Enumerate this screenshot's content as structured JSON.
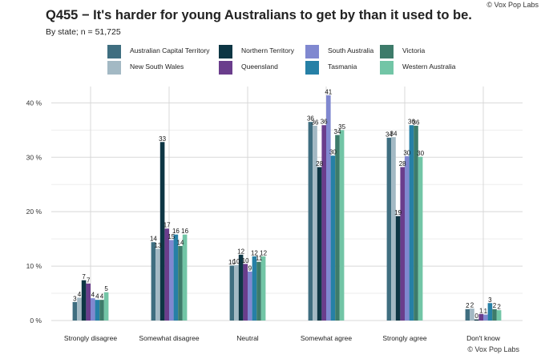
{
  "credit": "© Vox Pop Labs",
  "colors": {
    "Australian Capital Territory": "#3f6e80",
    "New South Wales": "#a3b9c4",
    "Northern Territory": "#0d3644",
    "Queensland": "#6a3d8c",
    "South Australia": "#8088d0",
    "Tasmania": "#2680a6",
    "Victoria": "#3d7b6a",
    "Western Australia": "#72c5a6"
  },
  "chart_data": {
    "type": "bar",
    "title": "Q455 − It's harder for young Australians to get by than it used to be.",
    "subtitle": "By state; n = 51,725",
    "categories": [
      "Strongly disagree",
      "Somewhat disagree",
      "Neutral",
      "Somewhat agree",
      "Strongly agree",
      "Don't know"
    ],
    "ylim": [
      0,
      43
    ],
    "yticks": [
      0,
      10,
      20,
      30,
      40
    ],
    "ytick_labels": [
      "0 %",
      "10 %",
      "20 %",
      "30 %",
      "40 %"
    ],
    "grid": true,
    "legend_position": "top",
    "legend_order": [
      "Australian Capital Territory",
      "New South Wales",
      "Northern Territory",
      "Queensland",
      "South Australia",
      "Tasmania",
      "Victoria",
      "Western Australia"
    ],
    "series": [
      {
        "name": "Australian Capital Territory",
        "values": [
          3.4,
          14.4,
          10.1,
          36.5,
          33.6,
          2.1
        ],
        "labels": [
          "3",
          "14",
          "10",
          "36",
          "34",
          "2"
        ]
      },
      {
        "name": "New South Wales",
        "values": [
          4.2,
          13.2,
          10.2,
          35.8,
          33.7,
          2.2
        ],
        "labels": [
          "4",
          "13",
          "10",
          "36",
          "34",
          "2"
        ]
      },
      {
        "name": "Northern Territory",
        "values": [
          7.4,
          32.8,
          12.1,
          28.2,
          19.2,
          0.2
        ],
        "labels": [
          "7",
          "33",
          "12",
          "28",
          "19",
          "0"
        ]
      },
      {
        "name": "Queensland",
        "values": [
          6.8,
          16.9,
          10.4,
          35.9,
          28.2,
          1.2
        ],
        "labels": [
          "7",
          "17",
          "10",
          "36",
          "28",
          "1"
        ]
      },
      {
        "name": "South Australia",
        "values": [
          4.1,
          14.8,
          9.0,
          41.4,
          30.2,
          1.1
        ],
        "labels": [
          "4",
          "15",
          "9",
          "41",
          "30",
          "1"
        ]
      },
      {
        "name": "Tasmania",
        "values": [
          3.8,
          15.8,
          11.8,
          30.3,
          35.9,
          3.2
        ],
        "labels": [
          "4",
          "16",
          "12",
          "30",
          "36",
          "3"
        ]
      },
      {
        "name": "Victoria",
        "values": [
          3.8,
          13.7,
          10.8,
          34.1,
          35.8,
          2.1
        ],
        "labels": [
          "4",
          "14",
          "11",
          "34",
          "36",
          "2"
        ]
      },
      {
        "name": "Western Australia",
        "values": [
          5.2,
          15.8,
          11.8,
          35.0,
          30.1,
          1.9
        ],
        "labels": [
          "5",
          "16",
          "12",
          "35",
          "30",
          "2"
        ]
      }
    ]
  }
}
